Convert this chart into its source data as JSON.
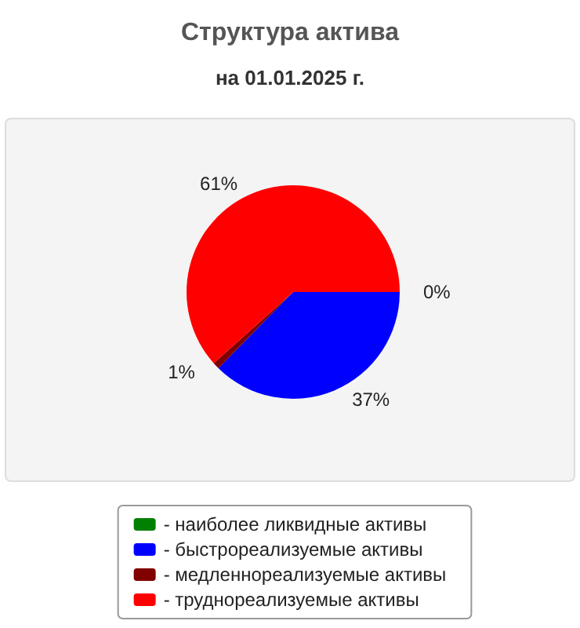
{
  "chart_data": {
    "type": "pie",
    "title": "Структура актива",
    "subtitle": "на 01.01.2025 г.",
    "categories": [
      "- наиболее ликвидные активы",
      "- быстрореализуемые активы",
      "- медленнореализуемые активы",
      "- труднореализуемые активы"
    ],
    "values": [
      0,
      37,
      1,
      61
    ],
    "colors": [
      "#008000",
      "#0000ff",
      "#800000",
      "#ff0000"
    ],
    "value_labels": [
      "0%",
      "37%",
      "1%",
      "61%"
    ],
    "legend": "bottom"
  }
}
